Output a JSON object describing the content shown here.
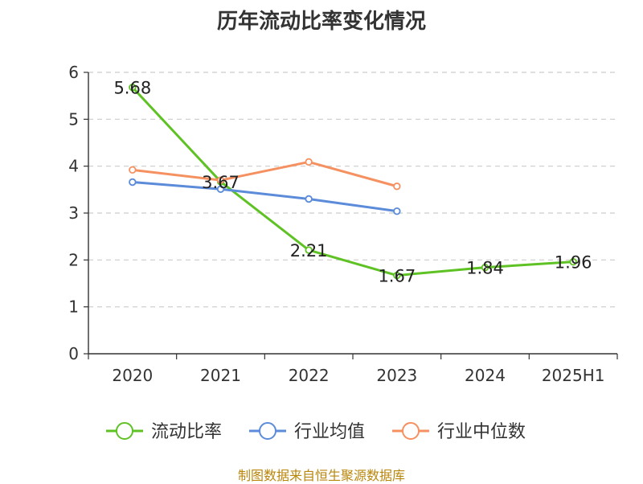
{
  "title": "历年流动比率变化情况",
  "footer": "制图数据来自恒生聚源数据库",
  "chart_data": {
    "type": "line",
    "categories": [
      "2020",
      "2021",
      "2022",
      "2023",
      "2024",
      "2025H1"
    ],
    "ylim": [
      0,
      6
    ],
    "yticks": [
      0,
      1,
      2,
      3,
      4,
      5,
      6
    ],
    "grid": true,
    "legend_position": "bottom",
    "series": [
      {
        "name": "流动比率",
        "color": "#5fc224",
        "values": [
          5.68,
          3.67,
          2.21,
          1.67,
          1.84,
          1.96
        ],
        "labels": [
          "5.68",
          "3.67",
          "2.21",
          "1.67",
          "1.84",
          "1.96"
        ]
      },
      {
        "name": "行业均值",
        "color": "#5b8bd9",
        "values": [
          3.66,
          3.51,
          3.3,
          3.04,
          null,
          null
        ]
      },
      {
        "name": "行业中位数",
        "color": "#f59161",
        "values": [
          3.92,
          3.7,
          4.09,
          3.57,
          null,
          null
        ]
      }
    ]
  }
}
